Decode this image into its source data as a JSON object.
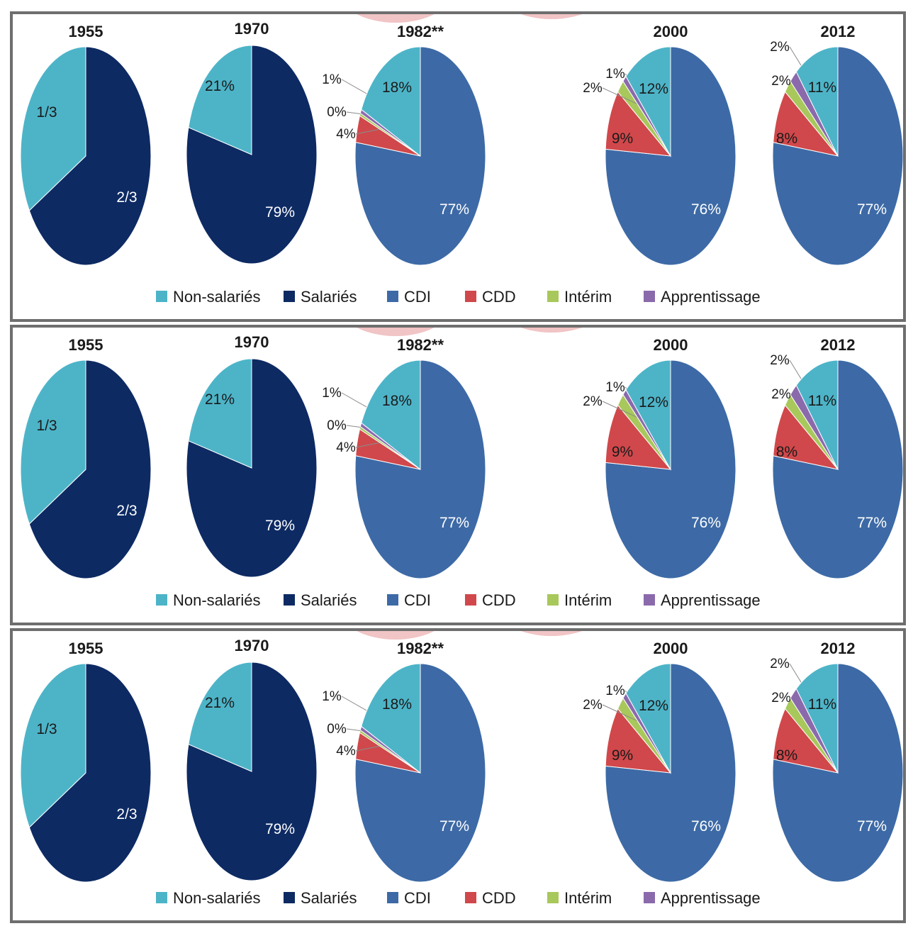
{
  "colors": {
    "Non-salariés": "#4db4c8",
    "Salariés": "#0d2a63",
    "CDI": "#3d6aa6",
    "CDD": "#d0484b",
    "Intérim": "#a8c85b",
    "Apprentissage": "#8b6aac",
    "decor": "#f1c4c5"
  },
  "legend": [
    "Non-salariés",
    "Salariés",
    "CDI",
    "CDD",
    "Intérim",
    "Apprentissage"
  ],
  "panels_count": 3,
  "chart_data": {
    "type": "pie",
    "pies": [
      {
        "year": "1955",
        "slices": [
          {
            "category": "Salariés",
            "value": 66.67,
            "label": "2/3"
          },
          {
            "category": "Non-salariés",
            "value": 33.33,
            "label": "1/3"
          }
        ]
      },
      {
        "year": "1970",
        "slices": [
          {
            "category": "Salariés",
            "value": 79,
            "label": "79%"
          },
          {
            "category": "Non-salariés",
            "value": 21,
            "label": "21%"
          }
        ]
      },
      {
        "year": "1982**",
        "slices": [
          {
            "category": "CDI",
            "value": 77,
            "label": "77%"
          },
          {
            "category": "CDD",
            "value": 4,
            "label": "4%"
          },
          {
            "category": "Intérim",
            "value": 0.4,
            "label": "0%"
          },
          {
            "category": "Apprentissage",
            "value": 0.6,
            "label": "1%"
          },
          {
            "category": "Non-salariés",
            "value": 18,
            "label": "18%"
          }
        ]
      },
      {
        "year": "2000",
        "slices": [
          {
            "category": "CDI",
            "value": 76,
            "label": "76%"
          },
          {
            "category": "CDD",
            "value": 9,
            "label": "9%"
          },
          {
            "category": "Intérim",
            "value": 2,
            "label": "2%"
          },
          {
            "category": "Apprentissage",
            "value": 1,
            "label": "1%"
          },
          {
            "category": "Non-salariés",
            "value": 12,
            "label": "12%"
          }
        ]
      },
      {
        "year": "2012",
        "slices": [
          {
            "category": "CDI",
            "value": 77,
            "label": "77%"
          },
          {
            "category": "CDD",
            "value": 8,
            "label": "8%"
          },
          {
            "category": "Intérim",
            "value": 2,
            "label": "2%"
          },
          {
            "category": "Apprentissage",
            "value": 2,
            "label": "2%"
          },
          {
            "category": "Non-salariés",
            "value": 11,
            "label": "11%"
          }
        ]
      }
    ]
  }
}
